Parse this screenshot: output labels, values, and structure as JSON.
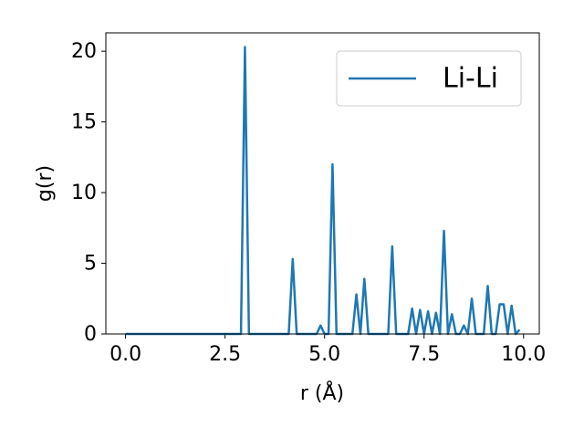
{
  "chart_data": {
    "type": "line",
    "xlabel": "r (Å)",
    "ylabel": "g(r)",
    "x": [
      0,
      0.1,
      0.2,
      0.3,
      0.4,
      0.5,
      0.6,
      0.7,
      0.8,
      0.9,
      1,
      1.1,
      1.2,
      1.3,
      1.4,
      1.5,
      1.6,
      1.7,
      1.8,
      1.9,
      2,
      2.1,
      2.2,
      2.3,
      2.4,
      2.5,
      2.6,
      2.7,
      2.8,
      2.9,
      3,
      3.1,
      3.2,
      3.3,
      3.4,
      3.5,
      3.6,
      3.7,
      3.8,
      3.9,
      4,
      4.1,
      4.2,
      4.3,
      4.4,
      4.5,
      4.6,
      4.7,
      4.8,
      4.9,
      5,
      5.1,
      5.2,
      5.3,
      5.4,
      5.5,
      5.6,
      5.7,
      5.8,
      5.9,
      6,
      6.1,
      6.2,
      6.3,
      6.4,
      6.5,
      6.6,
      6.7,
      6.8,
      6.9,
      7,
      7.1,
      7.2,
      7.3,
      7.4,
      7.5,
      7.6,
      7.7,
      7.8,
      7.9,
      8,
      8.1,
      8.2,
      8.3,
      8.4,
      8.5,
      8.6,
      8.7,
      8.8,
      8.9,
      9,
      9.1,
      9.2,
      9.3,
      9.4,
      9.5,
      9.6,
      9.7,
      9.8,
      9.9
    ],
    "series": [
      {
        "name": "Li-Li",
        "color": "#1f77b4",
        "values": [
          0,
          0,
          0,
          0,
          0,
          0,
          0,
          0,
          0,
          0,
          0,
          0,
          0,
          0,
          0,
          0,
          0,
          0,
          0,
          0,
          0,
          0,
          0,
          0,
          0,
          0,
          0,
          0,
          0,
          0,
          20.3,
          0,
          0,
          0,
          0,
          0,
          0,
          0,
          0,
          0,
          0,
          0,
          5.3,
          0,
          0,
          0,
          0,
          0,
          0,
          0.6,
          0,
          0,
          12.0,
          0,
          0,
          0,
          0,
          0,
          2.8,
          0,
          3.9,
          0,
          0,
          0,
          0,
          0,
          0,
          6.2,
          0,
          0,
          0,
          0,
          1.8,
          0,
          1.7,
          0,
          1.6,
          0,
          1.5,
          0,
          7.3,
          0,
          1.4,
          0,
          0,
          0.6,
          0,
          2.5,
          0,
          0,
          0,
          3.4,
          0,
          0,
          2.1,
          2.1,
          0,
          2.0,
          0,
          0.3
        ]
      }
    ],
    "xlim": [
      -0.495,
      10.395
    ],
    "ylim": [
      0,
      21.3
    ],
    "xticks": [
      {
        "value": 0,
        "label": "0.0"
      },
      {
        "value": 2.5,
        "label": "2.5"
      },
      {
        "value": 5,
        "label": "5.0"
      },
      {
        "value": 7.5,
        "label": "7.5"
      },
      {
        "value": 10,
        "label": "10.0"
      }
    ],
    "yticks": [
      0,
      5,
      10,
      15,
      20
    ],
    "legend": "upper right"
  }
}
